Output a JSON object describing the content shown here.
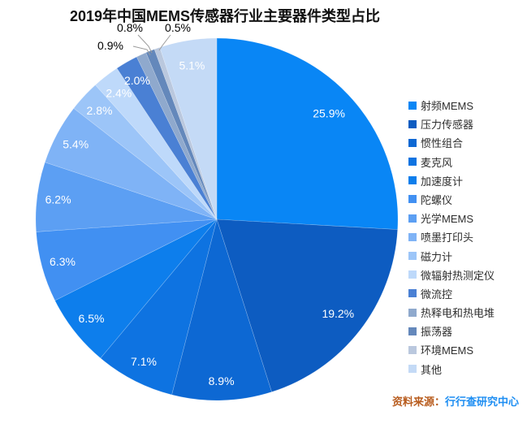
{
  "title": "2019年中国MEMS传感器行业主要器件类型占比",
  "source": {
    "prefix": "资料来源：",
    "name": "行行查研究中心",
    "prefix_color": "#b85c1e",
    "name_color": "#1e8ef2"
  },
  "chart_data": {
    "type": "pie",
    "title": "2019年中国MEMS传感器行业主要器件类型占比",
    "categories": [
      "射频MEMS",
      "压力传感器",
      "惯性组合",
      "麦克风",
      "加速度计",
      "陀螺仪",
      "光学MEMS",
      "喷墨打印头",
      "磁力计",
      "微辐射热测定仪",
      "微流控",
      "热释电和热电堆",
      "振荡器",
      "环境MEMS",
      "其他"
    ],
    "values": [
      25.9,
      19.2,
      8.9,
      7.1,
      6.5,
      6.3,
      6.2,
      5.4,
      2.8,
      2.4,
      2.0,
      0.9,
      0.8,
      0.5,
      5.1
    ],
    "labels": [
      "25.9%",
      "19.2%",
      "8.9%",
      "7.1%",
      "6.5%",
      "6.3%",
      "6.2%",
      "5.4%",
      "2.8%",
      "2.4%",
      "2.0%",
      "0.9%",
      "0.8%",
      "0.5%",
      "5.1%"
    ],
    "colors": [
      "#0986f5",
      "#0d5cc1",
      "#0d68d3",
      "#0e73e1",
      "#0d7eec",
      "#4190f2",
      "#5c9ff3",
      "#7fb3f6",
      "#9cc5f8",
      "#bed9fa",
      "#4a80d4",
      "#8fa9cd",
      "#6488bb",
      "#bac8de",
      "#c4daf6"
    ],
    "start_angle": 0,
    "direction": "clockwise",
    "legend_position": "right",
    "inside_label_color": "#ffffff",
    "outside_label_color": "#000000"
  }
}
